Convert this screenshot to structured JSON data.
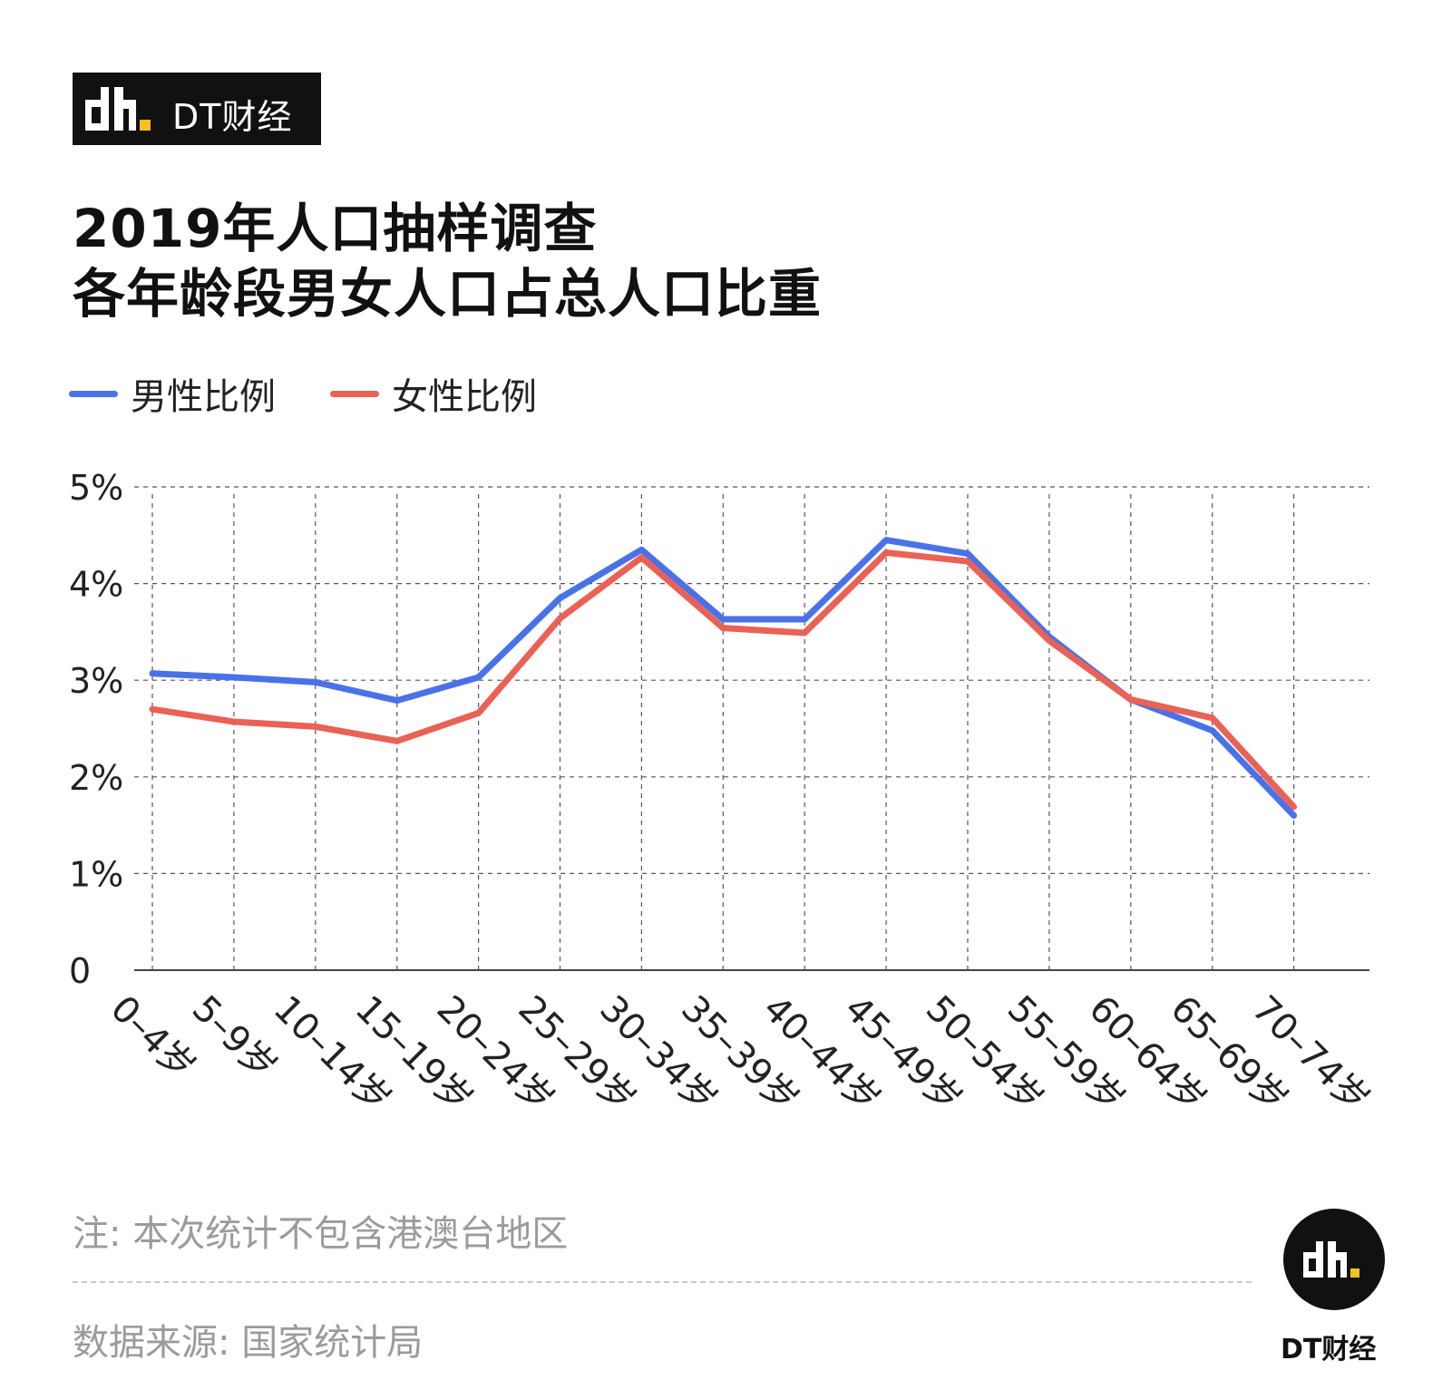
{
  "brand": {
    "name": "DT财经",
    "accent_color": "#f5c11e"
  },
  "title": {
    "line1": "2019年人口抽样调查",
    "line2": "各年龄段男女人口占总人口比重"
  },
  "note": "注: 本次统计不包含港澳台地区",
  "source": "数据来源: 国家统计局",
  "footer_brand": "DT财经",
  "chart_data": {
    "type": "line",
    "categories": [
      "0–4岁",
      "5–9岁",
      "10–14岁",
      "15–19岁",
      "20–24岁",
      "25–29岁",
      "30–34岁",
      "35–39岁",
      "40–44岁",
      "45–49岁",
      "50–54岁",
      "55–59岁",
      "60–64岁",
      "65–69岁",
      "70–74岁"
    ],
    "series": [
      {
        "name": "男性比例",
        "color": "#4a72e8",
        "values": [
          3.07,
          3.03,
          2.98,
          2.79,
          3.03,
          3.85,
          4.35,
          3.63,
          3.63,
          4.45,
          4.31,
          3.45,
          2.8,
          2.48,
          1.6
        ]
      },
      {
        "name": "女性比例",
        "color": "#ea6155",
        "values": [
          2.7,
          2.57,
          2.52,
          2.37,
          2.66,
          3.64,
          4.27,
          3.54,
          3.49,
          4.32,
          4.23,
          3.41,
          2.8,
          2.61,
          1.69
        ]
      }
    ],
    "y_ticks": [
      "5%",
      "4%",
      "3%",
      "2%",
      "1%",
      "0"
    ],
    "ylim": [
      0,
      5
    ],
    "grid": true,
    "legend": "top-left"
  }
}
